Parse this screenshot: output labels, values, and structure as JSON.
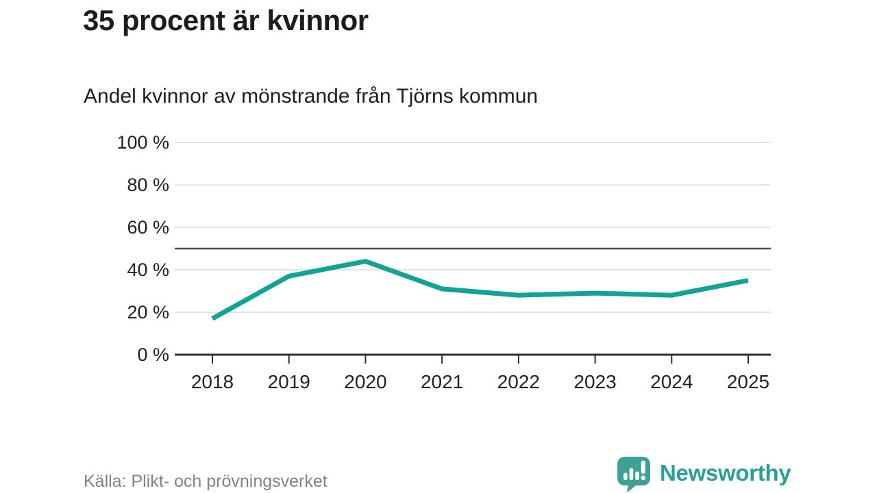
{
  "header": {
    "title": "35 procent är kvinnor",
    "subtitle": "Andel kvinnor av mönstrande från Tjörns kommun"
  },
  "footer": {
    "source": "Källa: Plikt- och prövningsverket",
    "brand": "Newsworthy"
  },
  "colors": {
    "line": "#12a296",
    "reference_line": "#4d4d4d",
    "gridline": "#e3e3e3",
    "axis": "#2f2f2f",
    "tick_label": "#1f1f1f",
    "brand_teal": "#2b9e99",
    "logo_bubble": "#3fa096",
    "muted_text": "#82828a"
  },
  "chart_data": {
    "type": "line",
    "title": "35 procent är kvinnor",
    "subtitle": "Andel kvinnor av mönstrande från Tjörns kommun",
    "x": [
      2018,
      2019,
      2020,
      2021,
      2022,
      2023,
      2024,
      2025
    ],
    "series": [
      {
        "name": "Andel kvinnor av mönstrande",
        "values": [
          17,
          37,
          44,
          31,
          28,
          29,
          28,
          35
        ]
      }
    ],
    "xlabel": "",
    "ylabel": "",
    "ylim": [
      0,
      100
    ],
    "ytick_step": 20,
    "ytick_suffix": " %",
    "reference_line": 50,
    "grid": true,
    "legend": "none"
  }
}
